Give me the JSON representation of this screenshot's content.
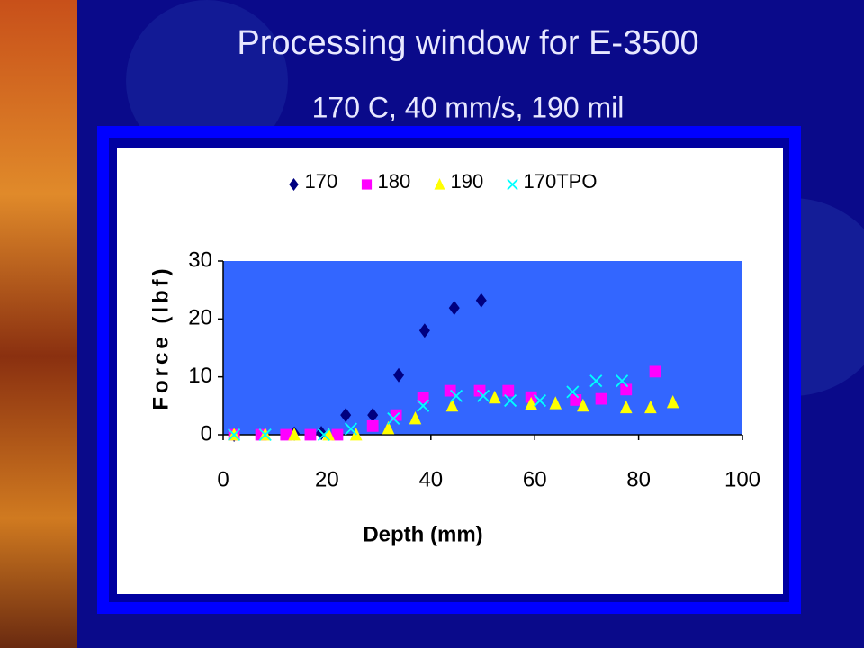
{
  "chart_data": {
    "type": "scatter",
    "title": "Processing window for E-3500",
    "subtitle": "170 C, 40 mm/s, 190 mil",
    "x_label": "Depth (mm)",
    "y_label": "Force (lbf)",
    "xlim": [
      0,
      100
    ],
    "xticks": [
      0,
      20,
      40,
      60,
      80,
      100
    ],
    "ylim": [
      0,
      30
    ],
    "yticks": [
      0,
      10,
      20,
      30
    ],
    "plot_background": "#3366ff",
    "legend": "top",
    "series": [
      {
        "name": "170",
        "color": "#000080",
        "marker": "diamond",
        "x": [
          2.1,
          13.7,
          18.9,
          23.6,
          28.8,
          33.8,
          38.8,
          44.5,
          49.7
        ],
        "values": [
          0,
          0.2,
          0.3,
          3.4,
          3.4,
          10.3,
          18,
          21.9,
          23.2
        ]
      },
      {
        "name": "180",
        "color": "#ff00ff",
        "marker": "square",
        "x": [
          2.1,
          7.3,
          12.1,
          16.8,
          22,
          28.8,
          33.3,
          38.5,
          43.7,
          49.4,
          54.9,
          59.3,
          67.9,
          72.8,
          77.6,
          83.2
        ],
        "values": [
          0,
          0,
          0,
          0,
          0,
          1.5,
          3.4,
          6.4,
          7.6,
          7.6,
          7.6,
          6.5,
          6,
          6.2,
          7.8,
          10.9
        ]
      },
      {
        "name": "190",
        "color": "#ffff00",
        "marker": "triangle",
        "x": [
          2.1,
          8.1,
          13.7,
          20.3,
          25.6,
          31.8,
          37,
          44.1,
          52.3,
          59.3,
          64,
          69.3,
          77.6,
          82.3,
          86.6
        ],
        "values": [
          0,
          0,
          0,
          0,
          0,
          1.1,
          2.8,
          5,
          6.4,
          5.3,
          5.4,
          5,
          4.7,
          4.7,
          5.6
        ]
      },
      {
        "name": "170TPO",
        "color": "#00ffff",
        "marker": "x",
        "x": [
          2.1,
          8.1,
          19.4,
          24.6,
          32.8,
          38.5,
          44.9,
          50.1,
          55.3,
          61,
          67.3,
          71.8,
          76.8
        ],
        "values": [
          0,
          0,
          0,
          1,
          2.8,
          5,
          6.7,
          6.7,
          5.9,
          5.9,
          7.4,
          9.3,
          9.3
        ]
      }
    ]
  }
}
